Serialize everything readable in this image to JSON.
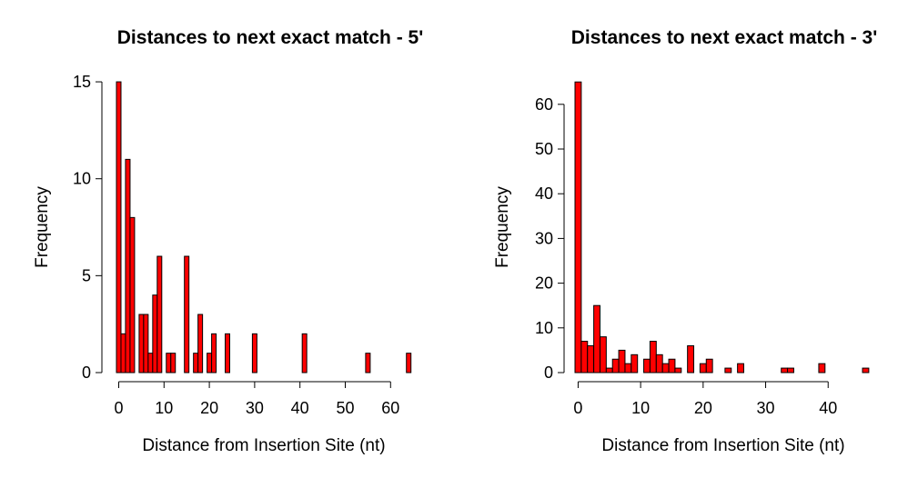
{
  "chart_data": [
    {
      "type": "bar",
      "title": "Distances to next exact match - 5'",
      "xlabel": "Distance from Insertion Site (nt)",
      "ylabel": "Frequency",
      "xlim": [
        0,
        65
      ],
      "ylim": [
        0,
        15
      ],
      "xticks": [
        0,
        10,
        20,
        30,
        40,
        50,
        60
      ],
      "yticks": [
        0,
        5,
        10,
        15
      ],
      "bin_width": 1,
      "bar_color": "#ff0000",
      "x": [
        0,
        1,
        2,
        3,
        5,
        6,
        7,
        8,
        9,
        11,
        12,
        15,
        17,
        18,
        20,
        21,
        24,
        30,
        41,
        55,
        64
      ],
      "values": [
        15,
        2,
        11,
        8,
        3,
        3,
        1,
        4,
        6,
        1,
        1,
        6,
        1,
        3,
        1,
        2,
        2,
        2,
        2,
        1,
        1
      ]
    },
    {
      "type": "bar",
      "title": "Distances to next exact match - 3'",
      "xlabel": "Distance from Insertion Site (nt)",
      "ylabel": "Frequency",
      "xlim": [
        0,
        47
      ],
      "ylim": [
        0,
        65
      ],
      "xticks": [
        0,
        10,
        20,
        30,
        40
      ],
      "yticks": [
        0,
        10,
        20,
        30,
        40,
        50,
        60
      ],
      "bin_width": 1,
      "bar_color": "#ff0000",
      "x": [
        0,
        1,
        2,
        3,
        4,
        5,
        6,
        7,
        8,
        9,
        11,
        12,
        13,
        14,
        15,
        16,
        18,
        20,
        21,
        24,
        26,
        33,
        34,
        39,
        46
      ],
      "values": [
        65,
        7,
        6,
        15,
        8,
        1,
        3,
        5,
        2,
        4,
        3,
        7,
        4,
        2,
        3,
        1,
        6,
        2,
        3,
        1,
        2,
        1,
        1,
        2,
        1
      ]
    }
  ]
}
